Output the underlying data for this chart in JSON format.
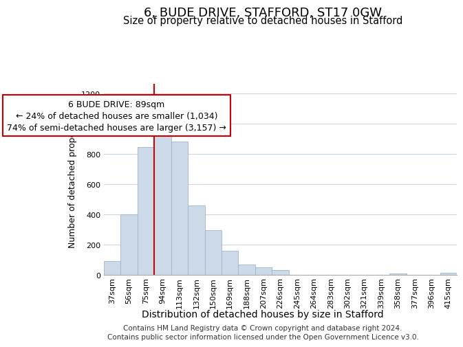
{
  "title": "6, BUDE DRIVE, STAFFORD, ST17 0GW",
  "subtitle": "Size of property relative to detached houses in Stafford",
  "xlabel": "Distribution of detached houses by size in Stafford",
  "ylabel": "Number of detached properties",
  "categories": [
    "37sqm",
    "56sqm",
    "75sqm",
    "94sqm",
    "113sqm",
    "132sqm",
    "150sqm",
    "169sqm",
    "188sqm",
    "207sqm",
    "226sqm",
    "245sqm",
    "264sqm",
    "283sqm",
    "302sqm",
    "321sqm",
    "339sqm",
    "358sqm",
    "377sqm",
    "396sqm",
    "415sqm"
  ],
  "bar_heights": [
    90,
    400,
    845,
    960,
    880,
    460,
    295,
    160,
    70,
    50,
    30,
    0,
    0,
    0,
    0,
    0,
    0,
    10,
    0,
    0,
    15
  ],
  "line_x_index": 3,
  "annotation_text": "6 BUDE DRIVE: 89sqm\n← 24% of detached houses are smaller (1,034)\n74% of semi-detached houses are larger (3,157) →",
  "bar_color": "#ccd9e8",
  "bar_edge_color": "#9db4cc",
  "line_color": "#cc0000",
  "annotation_box_facecolor": "#ffffff",
  "annotation_box_edgecolor": "#cc0000",
  "grid_color": "#c8d4e0",
  "ylim": [
    0,
    1260
  ],
  "yticks": [
    0,
    200,
    400,
    600,
    800,
    1000,
    1200
  ],
  "footer_text": "Contains HM Land Registry data © Crown copyright and database right 2024.\nContains public sector information licensed under the Open Government Licence v3.0.",
  "title_fontsize": 13,
  "subtitle_fontsize": 10.5,
  "xlabel_fontsize": 10,
  "ylabel_fontsize": 9,
  "annotation_fontsize": 9,
  "footer_fontsize": 7.5,
  "tick_fontsize": 8
}
